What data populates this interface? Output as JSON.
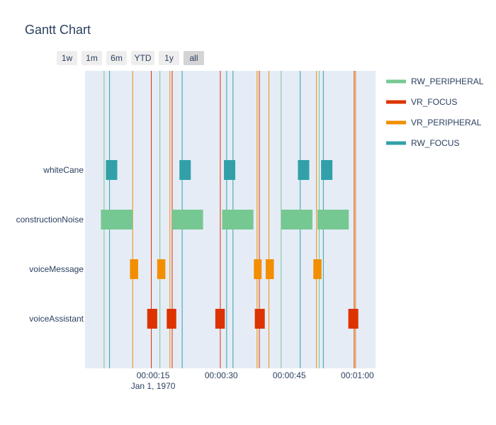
{
  "chart_data": {
    "type": "gantt",
    "title": "Gantt Chart",
    "range_buttons": [
      {
        "label": "1w",
        "active": false
      },
      {
        "label": "1m",
        "active": false
      },
      {
        "label": "6m",
        "active": false
      },
      {
        "label": "YTD",
        "active": false
      },
      {
        "label": "1y",
        "active": false
      },
      {
        "label": "all",
        "active": true
      }
    ],
    "x_unit": "seconds",
    "x_range": [
      0,
      64
    ],
    "x_ticks": [
      {
        "value": 15,
        "label": "00:00:15"
      },
      {
        "value": 30,
        "label": "00:00:30"
      },
      {
        "value": 45,
        "label": "00:00:45"
      },
      {
        "value": 60,
        "label": "00:01:00"
      }
    ],
    "x_date_label": "Jan 1, 1970",
    "categories": [
      "whiteCane",
      "constructionNoise",
      "voiceMessage",
      "voiceAssistant"
    ],
    "series": [
      {
        "name": "RW_PERIPHERAL",
        "color": "#76c893",
        "tasks": [
          {
            "task": "constructionNoise",
            "start": 3.5,
            "end": 10.5
          },
          {
            "task": "constructionNoise",
            "start": 19.2,
            "end": 26.0
          },
          {
            "task": "constructionNoise",
            "start": 30.2,
            "end": 37.1
          },
          {
            "task": "constructionNoise",
            "start": 43.2,
            "end": 50.1
          },
          {
            "task": "constructionNoise",
            "start": 51.2,
            "end": 58.1
          }
        ],
        "lines": [
          4.2,
          16.5,
          43.2,
          51.6
        ]
      },
      {
        "name": "VR_FOCUS",
        "color": "#dd3300",
        "tasks": [
          {
            "task": "voiceAssistant",
            "start": 13.7,
            "end": 15.9
          },
          {
            "task": "voiceAssistant",
            "start": 18.0,
            "end": 20.1
          },
          {
            "task": "voiceAssistant",
            "start": 28.7,
            "end": 30.8
          },
          {
            "task": "voiceAssistant",
            "start": 37.4,
            "end": 39.6
          },
          {
            "task": "voiceAssistant",
            "start": 58.0,
            "end": 60.2
          }
        ],
        "lines": [
          14.6,
          19.2,
          29.8,
          38.4,
          59.3
        ]
      },
      {
        "name": "VR_PERIPHERAL",
        "color": "#f28e00",
        "tasks": [
          {
            "task": "voiceMessage",
            "start": 9.9,
            "end": 11.7
          },
          {
            "task": "voiceMessage",
            "start": 15.9,
            "end": 17.7
          },
          {
            "task": "voiceMessage",
            "start": 37.2,
            "end": 38.9
          },
          {
            "task": "voiceMessage",
            "start": 39.8,
            "end": 41.6
          },
          {
            "task": "voiceMessage",
            "start": 50.3,
            "end": 52.1
          }
        ],
        "lines": [
          10.5,
          18.7,
          37.9,
          40.5,
          51.0,
          59.6
        ]
      },
      {
        "name": "RW_FOCUS",
        "color": "#32a0a8",
        "tasks": [
          {
            "task": "whiteCane",
            "start": 4.6,
            "end": 7.1
          },
          {
            "task": "whiteCane",
            "start": 20.8,
            "end": 23.3
          },
          {
            "task": "whiteCane",
            "start": 30.6,
            "end": 33.1
          },
          {
            "task": "whiteCane",
            "start": 46.9,
            "end": 49.4
          },
          {
            "task": "whiteCane",
            "start": 52.0,
            "end": 54.5
          }
        ],
        "lines": [
          5.4,
          21.4,
          31.2,
          32.6,
          47.4,
          52.5
        ]
      }
    ],
    "legend_position": "top-right",
    "grid": false
  }
}
